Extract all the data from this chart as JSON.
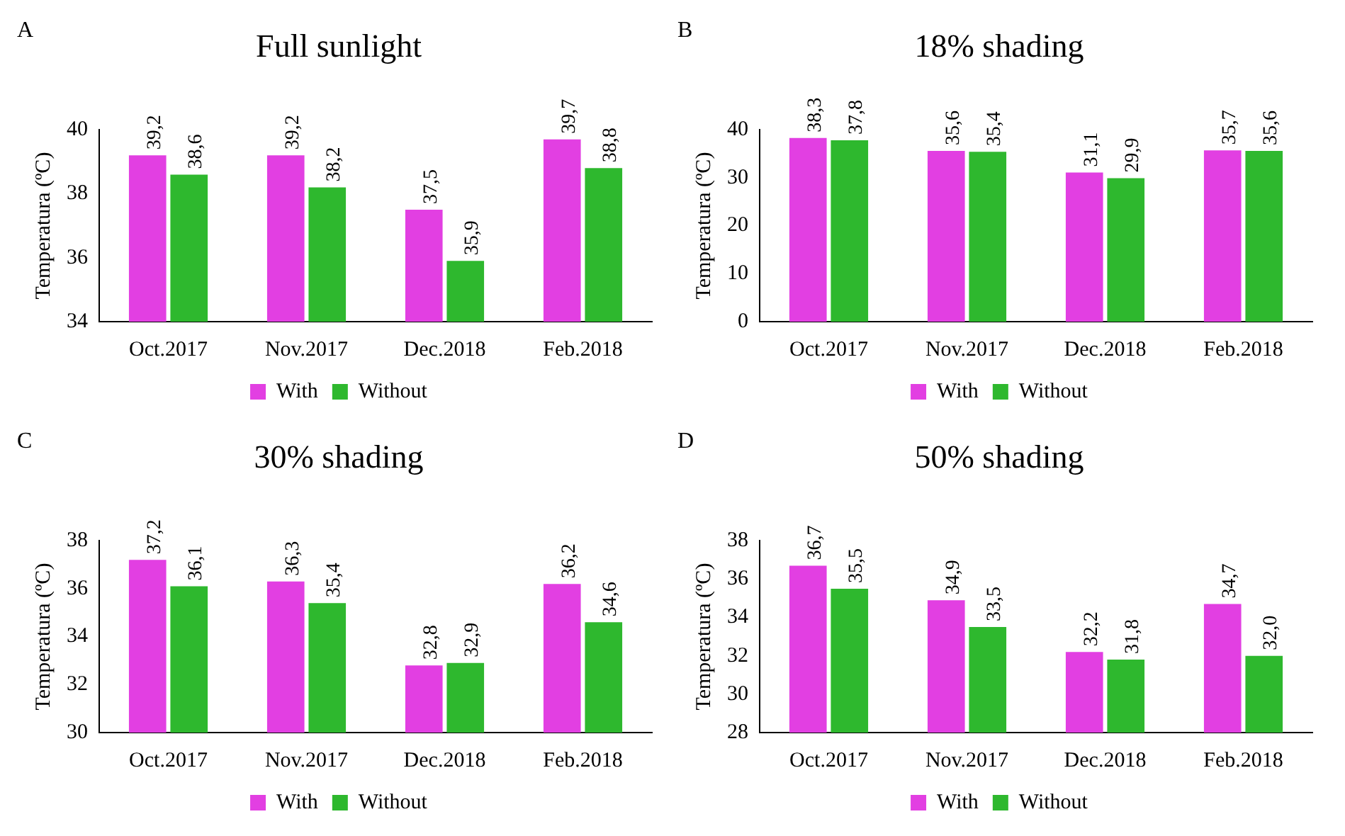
{
  "chart_data": [
    {
      "type": "bar",
      "title": "Full sunlight",
      "annotations": [
        "A"
      ],
      "ylabel": "Temperatura (ºC)",
      "categories": [
        "Oct.2017",
        "Nov.2017",
        "Dec.2018",
        "Feb.2018"
      ],
      "ylim": [
        34,
        40
      ],
      "yticks": [
        34,
        36,
        38,
        40
      ],
      "legend": "bottom",
      "series": [
        {
          "name": "With",
          "color": "#e23fe2",
          "values": [
            39.2,
            39.2,
            37.5,
            39.7
          ],
          "value_labels": [
            "39,2",
            "39,2",
            "37,5",
            "39,7"
          ]
        },
        {
          "name": "Without",
          "color": "#2eb82e",
          "values": [
            38.6,
            38.2,
            35.9,
            38.8
          ],
          "value_labels": [
            "38,6",
            "38,2",
            "35,9",
            "38,8"
          ]
        }
      ]
    },
    {
      "type": "bar",
      "title": "18% shading",
      "annotations": [
        "B"
      ],
      "ylabel": "Temperatura (ºC)",
      "categories": [
        "Oct.2017",
        "Nov.2017",
        "Dec.2018",
        "Feb.2018"
      ],
      "ylim": [
        0,
        40
      ],
      "yticks": [
        0,
        10,
        20,
        30,
        40
      ],
      "legend": "bottom",
      "series": [
        {
          "name": "With",
          "color": "#e23fe2",
          "values": [
            38.3,
            35.6,
            31.1,
            35.7
          ],
          "value_labels": [
            "38,3",
            "35,6",
            "31,1",
            "35,7"
          ]
        },
        {
          "name": "Without",
          "color": "#2eb82e",
          "values": [
            37.8,
            35.4,
            29.9,
            35.6
          ],
          "value_labels": [
            "37,8",
            "35,4",
            "29,9",
            "35,6"
          ]
        }
      ]
    },
    {
      "type": "bar",
      "title": "30% shading",
      "annotations": [
        "C"
      ],
      "ylabel": "Temperatura (ºC)",
      "categories": [
        "Oct.2017",
        "Nov.2017",
        "Dec.2018",
        "Feb.2018"
      ],
      "ylim": [
        30,
        38
      ],
      "yticks": [
        30,
        32,
        34,
        36,
        38
      ],
      "legend": "bottom",
      "series": [
        {
          "name": "With",
          "color": "#e23fe2",
          "values": [
            37.2,
            36.3,
            32.8,
            36.2
          ],
          "value_labels": [
            "37,2",
            "36,3",
            "32,8",
            "36,2"
          ]
        },
        {
          "name": "Without",
          "color": "#2eb82e",
          "values": [
            36.1,
            35.4,
            32.9,
            34.6
          ],
          "value_labels": [
            "36,1",
            "35,4",
            "32,9",
            "34,6"
          ]
        }
      ]
    },
    {
      "type": "bar",
      "title": "50% shading",
      "annotations": [
        "D"
      ],
      "ylabel": "Temperatura (ºC)",
      "categories": [
        "Oct.2017",
        "Nov.2017",
        "Dec.2018",
        "Feb.2018"
      ],
      "ylim": [
        28,
        38
      ],
      "yticks": [
        28,
        30,
        32,
        34,
        36,
        38
      ],
      "legend": "bottom",
      "series": [
        {
          "name": "With",
          "color": "#e23fe2",
          "values": [
            36.7,
            34.9,
            32.2,
            34.7
          ],
          "value_labels": [
            "36,7",
            "34,9",
            "32,2",
            "34,7"
          ]
        },
        {
          "name": "Without",
          "color": "#2eb82e",
          "values": [
            35.5,
            33.5,
            31.8,
            32.0
          ],
          "value_labels": [
            "35,5",
            "33,5",
            "31,8",
            "32,0"
          ]
        }
      ]
    }
  ]
}
